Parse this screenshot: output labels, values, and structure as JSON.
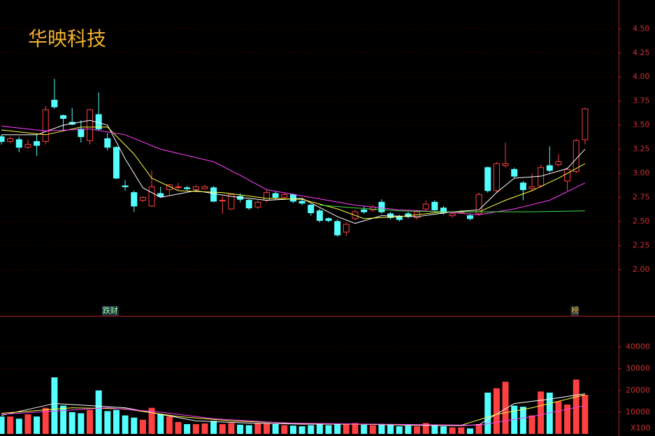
{
  "chart_data": {
    "type": "candlestick",
    "title": "华映科技",
    "up_color": "#ff4040",
    "down_color": "#54ffff",
    "open": [
      3.38,
      3.33,
      3.35,
      3.27,
      3.33,
      3.33,
      3.76,
      3.6,
      3.53,
      3.46,
      3.34,
      3.61,
      3.36,
      3.27,
      2.87,
      2.8,
      2.72,
      2.66,
      2.79,
      2.83,
      2.86,
      2.85,
      2.83,
      2.84,
      2.85,
      2.72,
      2.63,
      2.76,
      2.72,
      2.65,
      2.72,
      2.79,
      2.75,
      2.78,
      2.71,
      2.67,
      2.61,
      2.53,
      2.5,
      2.39,
      2.53,
      2.62,
      2.62,
      2.7,
      2.58,
      2.55,
      2.58,
      2.54,
      2.63,
      2.7,
      2.64,
      2.56,
      2.6,
      2.56,
      2.58,
      3.06,
      2.82,
      3.08,
      3.04,
      2.9,
      2.84,
      2.87,
      3.08,
      3.09,
      2.92,
      3.02,
      3.35
    ],
    "high": [
      3.4,
      3.38,
      3.38,
      3.35,
      3.4,
      3.7,
      3.98,
      3.61,
      3.68,
      3.55,
      3.67,
      3.84,
      3.42,
      3.28,
      2.93,
      2.82,
      2.76,
      3.03,
      2.86,
      2.89,
      2.9,
      2.87,
      2.88,
      2.88,
      2.87,
      2.76,
      2.79,
      2.79,
      2.73,
      2.72,
      2.83,
      2.81,
      2.8,
      2.79,
      2.73,
      2.68,
      2.63,
      2.54,
      2.52,
      2.49,
      2.62,
      2.66,
      2.67,
      2.73,
      2.6,
      2.57,
      2.6,
      2.62,
      2.72,
      2.72,
      2.66,
      2.6,
      2.62,
      2.58,
      2.8,
      3.07,
      3.12,
      3.32,
      3.06,
      2.92,
      3.0,
      3.09,
      3.28,
      3.2,
      3.06,
      3.36,
      3.68
    ],
    "low": [
      3.3,
      3.31,
      3.22,
      3.25,
      3.18,
      3.3,
      3.67,
      3.45,
      3.5,
      3.32,
      3.3,
      3.44,
      3.24,
      2.94,
      2.82,
      2.6,
      2.7,
      2.65,
      2.75,
      2.77,
      2.83,
      2.82,
      2.81,
      2.83,
      2.7,
      2.58,
      2.62,
      2.7,
      2.62,
      2.63,
      2.7,
      2.73,
      2.73,
      2.69,
      2.67,
      2.56,
      2.49,
      2.49,
      2.34,
      2.35,
      2.51,
      2.58,
      2.6,
      2.58,
      2.52,
      2.5,
      2.53,
      2.52,
      2.61,
      2.6,
      2.57,
      2.54,
      2.58,
      2.51,
      2.56,
      2.8,
      2.8,
      3.06,
      2.95,
      2.72,
      2.82,
      2.85,
      3.01,
      3.07,
      2.82,
      3.0,
      3.3
    ],
    "close": [
      3.33,
      3.36,
      3.27,
      3.3,
      3.29,
      3.66,
      3.69,
      3.57,
      3.51,
      3.38,
      3.66,
      3.46,
      3.27,
      2.95,
      2.86,
      2.66,
      2.75,
      2.86,
      2.76,
      2.88,
      2.86,
      2.84,
      2.86,
      2.86,
      2.71,
      2.72,
      2.78,
      2.73,
      2.64,
      2.7,
      2.8,
      2.75,
      2.78,
      2.71,
      2.69,
      2.59,
      2.51,
      2.51,
      2.36,
      2.47,
      2.6,
      2.6,
      2.65,
      2.6,
      2.54,
      2.52,
      2.55,
      2.6,
      2.68,
      2.62,
      2.59,
      2.58,
      2.6,
      2.53,
      2.78,
      2.82,
      3.1,
      3.1,
      2.97,
      2.83,
      2.86,
      3.06,
      3.03,
      3.12,
      3.04,
      3.34,
      3.67
    ],
    "ylim": [
      1.52,
      4.8
    ],
    "yticks": [
      {
        "value": 2,
        "label": "2.00"
      },
      {
        "value": 2.25,
        "label": "2.25"
      },
      {
        "value": 2.5,
        "label": "2.50"
      },
      {
        "value": 2.75,
        "label": "2.75"
      },
      {
        "value": 3,
        "label": "3.00"
      },
      {
        "value": 3.25,
        "label": "3.25"
      },
      {
        "value": 3.5,
        "label": "3.50"
      },
      {
        "value": 3.75,
        "label": "3.75"
      },
      {
        "value": 4,
        "label": "4.00"
      },
      {
        "value": 4.25,
        "label": "4.25"
      },
      {
        "value": 4.5,
        "label": "4.50"
      }
    ],
    "ma_lines": [
      {
        "color": "#ffffff",
        "x": [
          0,
          4,
          7,
          10,
          12,
          14,
          16,
          18,
          22,
          26,
          30,
          34,
          38,
          40,
          43,
          47,
          51,
          54,
          56,
          58,
          61,
          64,
          66
        ],
        "values": [
          3.4,
          3.4,
          3.5,
          3.55,
          3.5,
          3.15,
          2.85,
          2.75,
          2.82,
          2.76,
          2.72,
          2.74,
          2.55,
          2.48,
          2.56,
          2.55,
          2.6,
          2.62,
          2.8,
          2.95,
          2.97,
          3.05,
          3.25
        ]
      },
      {
        "color": "#ffff40",
        "x": [
          0,
          5,
          9,
          12,
          15,
          17,
          20,
          25,
          30,
          34,
          38,
          41,
          45,
          50,
          54,
          57,
          60,
          63,
          66
        ],
        "values": [
          3.45,
          3.4,
          3.48,
          3.48,
          3.2,
          2.95,
          2.82,
          2.8,
          2.74,
          2.73,
          2.63,
          2.53,
          2.55,
          2.6,
          2.6,
          2.72,
          2.82,
          2.95,
          3.1
        ]
      },
      {
        "color": "#ff40ff",
        "x": [
          0,
          5,
          10,
          14,
          18,
          24,
          27,
          30,
          35,
          40,
          45,
          50,
          54,
          58,
          62,
          66
        ],
        "values": [
          3.49,
          3.44,
          3.46,
          3.4,
          3.25,
          3.12,
          2.98,
          2.83,
          2.75,
          2.67,
          2.62,
          2.6,
          2.57,
          2.63,
          2.72,
          2.9
        ]
      },
      {
        "color": "#40e040",
        "x": [
          36,
          40,
          45,
          50,
          55,
          60,
          66
        ],
        "values": [
          2.67,
          2.64,
          2.61,
          2.6,
          2.6,
          2.6,
          2.61
        ]
      }
    ],
    "annotations": [
      {
        "x": 12,
        "text": "跌财"
      },
      {
        "x": 65,
        "text": "榜"
      }
    ],
    "volume": {
      "values": [
        8000,
        8000,
        7000,
        9000,
        8000,
        12000,
        26000,
        13000,
        10000,
        9500,
        11000,
        20000,
        10500,
        11000,
        8500,
        7500,
        6500,
        12000,
        9000,
        8000,
        5500,
        4500,
        4500,
        4800,
        6000,
        4500,
        5000,
        4200,
        4000,
        5000,
        5000,
        4500,
        4000,
        3800,
        3500,
        4000,
        4500,
        4000,
        4500,
        4500,
        5000,
        4200,
        4000,
        4500,
        4200,
        3500,
        3800,
        3500,
        5000,
        4000,
        3500,
        3000,
        3000,
        2500,
        4500,
        19000,
        21000,
        24000,
        13000,
        12500,
        8500,
        19500,
        19000,
        15000,
        13500,
        25000,
        18000
      ],
      "ylim": [
        0,
        54000
      ],
      "yticks": [
        10000,
        20000,
        30000,
        40000
      ],
      "unit_label": "X100",
      "ma_lines": [
        {
          "color": "#ffffff",
          "x": [
            0,
            6,
            10,
            14,
            18,
            22,
            28,
            34,
            40,
            46,
            52,
            54,
            58,
            62,
            66
          ],
          "values": [
            8500,
            14000,
            13000,
            12000,
            9000,
            6000,
            5000,
            4500,
            4500,
            4000,
            3800,
            4200,
            14000,
            16000,
            18500
          ]
        },
        {
          "color": "#ffff40",
          "x": [
            0,
            8,
            14,
            20,
            26,
            34,
            44,
            52,
            56,
            60,
            66
          ],
          "values": [
            9500,
            12000,
            11500,
            8000,
            6000,
            4800,
            4300,
            4000,
            9000,
            12000,
            18000
          ]
        },
        {
          "color": "#ff40ff",
          "x": [
            0,
            12,
            18,
            24,
            32,
            44,
            54,
            60,
            66
          ],
          "values": [
            9000,
            12000,
            10000,
            7000,
            5000,
            4400,
            4000,
            8000,
            13000
          ]
        }
      ]
    }
  }
}
